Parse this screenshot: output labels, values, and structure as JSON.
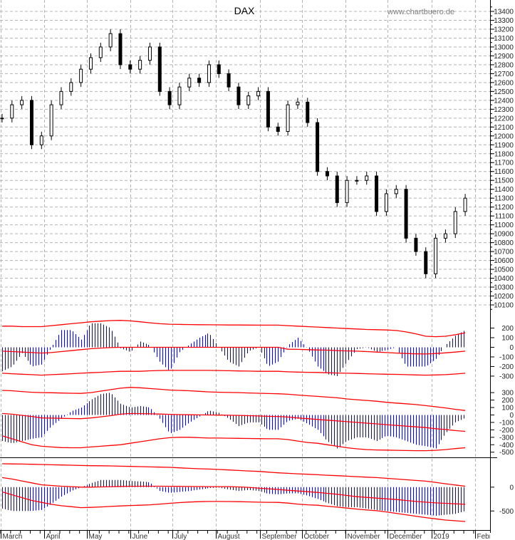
{
  "chart_data": [
    {
      "type": "ohlc",
      "title": "DAX",
      "watermark": "www.chartbuero.de",
      "x_start": "2018-03-02",
      "x_step_days": 7,
      "ylim": [
        10050,
        13480
      ],
      "yticks": [
        13400,
        13300,
        13200,
        13100,
        13000,
        12900,
        12800,
        12700,
        12600,
        12500,
        12400,
        12300,
        12200,
        12100,
        12000,
        11900,
        11800,
        11700,
        11600,
        11500,
        11400,
        11300,
        11200,
        11100,
        11000,
        10900,
        10800,
        10700,
        10600,
        10500,
        10400,
        10300,
        10200,
        10100
      ],
      "close": [
        12200,
        12350,
        12400,
        11900,
        12000,
        12350,
        12500,
        12600,
        12750,
        12880,
        13000,
        13150,
        12800,
        12750,
        12850,
        13000,
        12500,
        12350,
        12550,
        12650,
        12600,
        12800,
        12700,
        12550,
        12350,
        12450,
        12500,
        12100,
        12050,
        12350,
        12380,
        12150,
        11600,
        11550,
        11250,
        11500,
        11500,
        11550,
        11150,
        11350,
        11400,
        10850,
        10700,
        10450,
        10850,
        10900,
        11150,
        11300
      ],
      "grid": true
    },
    {
      "type": "bar+line",
      "ylim": [
        -330,
        300
      ],
      "yticks": [
        200,
        100,
        0,
        -100,
        -200,
        -300
      ],
      "histogram": [
        -250,
        -200,
        -60,
        -200,
        -180,
        0,
        180,
        180,
        80,
        250,
        250,
        200,
        -10,
        -50,
        60,
        20,
        -150,
        -250,
        -50,
        30,
        100,
        150,
        0,
        -150,
        -200,
        -40,
        0,
        -200,
        -150,
        20,
        100,
        -20,
        -200,
        -280,
        -300,
        -150,
        -20,
        0,
        -50,
        -30,
        0,
        -200,
        -200,
        -200,
        -120,
        20,
        120,
        180
      ],
      "upper_band": [
        220,
        220,
        215,
        215,
        215,
        225,
        235,
        245,
        255,
        265,
        272,
        278,
        280,
        275,
        265,
        255,
        245,
        240,
        238,
        236,
        235,
        234,
        233,
        232,
        232,
        231,
        230,
        230,
        230,
        225,
        220,
        215,
        210,
        205,
        200,
        195,
        190,
        185,
        183,
        180,
        175,
        160,
        140,
        115,
        110,
        115,
        130,
        150
      ],
      "middle_line": [
        -40,
        -45,
        -50,
        -55,
        -60,
        -55,
        -45,
        -35,
        -25,
        -15,
        -8,
        -3,
        0,
        0,
        0,
        0,
        0,
        0,
        0,
        0,
        0,
        0,
        0,
        0,
        0,
        0,
        0,
        0,
        0,
        -20,
        -22,
        -25,
        -28,
        -30,
        -35,
        -38,
        -40,
        -45,
        -50,
        -55,
        -60,
        -65,
        -68,
        -70,
        -65,
        -58,
        -50,
        -40
      ],
      "lower_band": [
        -270,
        -275,
        -280,
        -285,
        -290,
        -285,
        -280,
        -275,
        -270,
        -265,
        -260,
        -255,
        -250,
        -250,
        -250,
        -245,
        -242,
        -240,
        -240,
        -240,
        -240,
        -240,
        -242,
        -244,
        -246,
        -248,
        -250,
        -250,
        -250,
        -255,
        -258,
        -260,
        -262,
        -265,
        -268,
        -270,
        -272,
        -275,
        -278,
        -280,
        -282,
        -285,
        -288,
        -290,
        -288,
        -285,
        -278,
        -270
      ]
    },
    {
      "type": "bar+line",
      "ylim": [
        -560,
        330
      ],
      "yticks": [
        300,
        200,
        100,
        0,
        -100,
        -200,
        -300,
        -400,
        -500
      ],
      "histogram": [
        -350,
        -380,
        -350,
        -320,
        -300,
        -150,
        -50,
        50,
        100,
        200,
        280,
        300,
        150,
        100,
        120,
        100,
        -50,
        -250,
        -200,
        -100,
        -20,
        60,
        30,
        -50,
        -150,
        -100,
        -100,
        -200,
        -200,
        -80,
        -50,
        -120,
        -200,
        -350,
        -450,
        -350,
        -300,
        -300,
        -350,
        -280,
        -300,
        -350,
        -400,
        -420,
        -450,
        -250,
        -100,
        -40
      ],
      "upper_band": [
        330,
        325,
        315,
        305,
        300,
        298,
        295,
        292,
        290,
        300,
        320,
        340,
        360,
        370,
        365,
        355,
        345,
        335,
        330,
        325,
        318,
        310,
        305,
        302,
        300,
        296,
        292,
        288,
        285,
        278,
        268,
        258,
        250,
        240,
        230,
        215,
        205,
        195,
        185,
        170,
        160,
        150,
        140,
        125,
        110,
        95,
        75,
        60
      ],
      "middle_line": [
        20,
        10,
        -5,
        -20,
        -40,
        -42,
        -45,
        -48,
        -50,
        -40,
        -25,
        -10,
        10,
        20,
        18,
        15,
        12,
        8,
        5,
        3,
        1,
        0,
        -2,
        -4,
        -6,
        -10,
        -14,
        -18,
        -20,
        -28,
        -40,
        -50,
        -60,
        -70,
        -80,
        -90,
        -100,
        -110,
        -120,
        -130,
        -140,
        -150,
        -160,
        -170,
        -185,
        -195,
        -210,
        -220
      ],
      "lower_band": [
        -280,
        -320,
        -360,
        -400,
        -420,
        -430,
        -438,
        -440,
        -440,
        -430,
        -420,
        -410,
        -400,
        -380,
        -360,
        -340,
        -320,
        -305,
        -300,
        -300,
        -305,
        -310,
        -310,
        -312,
        -314,
        -316,
        -318,
        -320,
        -320,
        -330,
        -350,
        -370,
        -380,
        -400,
        -420,
        -440,
        -455,
        -465,
        -470,
        -472,
        -475,
        -478,
        -480,
        -480,
        -475,
        -465,
        -452,
        -440
      ]
    },
    {
      "type": "bar+line",
      "ylim": [
        -840,
        580
      ],
      "yticks": [
        0,
        -500
      ],
      "histogram": [
        -450,
        -500,
        -500,
        -500,
        -480,
        -350,
        -200,
        -80,
        0,
        80,
        150,
        150,
        150,
        130,
        120,
        100,
        -80,
        -120,
        -100,
        -80,
        -50,
        -20,
        -10,
        -50,
        -80,
        -60,
        -80,
        -140,
        -150,
        -130,
        -130,
        -180,
        -250,
        -330,
        -400,
        -420,
        -420,
        -450,
        -480,
        -500,
        -520,
        -540,
        -560,
        -580,
        -600,
        -580,
        -560,
        -500
      ],
      "upper_band": [
        490,
        488,
        485,
        480,
        475,
        470,
        465,
        460,
        455,
        450,
        448,
        445,
        440,
        435,
        430,
        425,
        420,
        415,
        405,
        395,
        385,
        380,
        370,
        360,
        350,
        340,
        330,
        315,
        300,
        290,
        280,
        270,
        260,
        250,
        240,
        230,
        220,
        210,
        200,
        185,
        170,
        155,
        140,
        125,
        100,
        70,
        45,
        20
      ],
      "middle_line": [
        200,
        170,
        130,
        90,
        50,
        35,
        20,
        10,
        0,
        0,
        5,
        10,
        15,
        18,
        20,
        20,
        20,
        18,
        16,
        14,
        12,
        10,
        10,
        10,
        5,
        -5,
        -20,
        -35,
        -50,
        -65,
        -80,
        -95,
        -110,
        -130,
        -150,
        -175,
        -200,
        -215,
        -230,
        -245,
        -260,
        -280,
        -300,
        -315,
        -330,
        -340,
        -350,
        -360
      ],
      "lower_band": [
        -100,
        -160,
        -220,
        -280,
        -320,
        -360,
        -390,
        -410,
        -430,
        -425,
        -415,
        -405,
        -395,
        -385,
        -380,
        -370,
        -355,
        -340,
        -325,
        -312,
        -305,
        -300,
        -300,
        -302,
        -305,
        -310,
        -315,
        -318,
        -320,
        -335,
        -355,
        -370,
        -380,
        -400,
        -420,
        -440,
        -460,
        -480,
        -495,
        -520,
        -550,
        -580,
        -610,
        -640,
        -665,
        -690,
        -705,
        -720
      ]
    }
  ],
  "x_axis": {
    "range": [
      "2018-03-01",
      "2019-02-05"
    ],
    "months": [
      {
        "date": "2018-03-01",
        "label": "March"
      },
      {
        "date": "2018-04-01",
        "label": "April"
      },
      {
        "date": "2018-05-01",
        "label": "May"
      },
      {
        "date": "2018-06-01",
        "label": "June"
      },
      {
        "date": "2018-07-01",
        "label": "July"
      },
      {
        "date": "2018-08-01",
        "label": "August"
      },
      {
        "date": "2018-09-01",
        "label": "September"
      },
      {
        "date": "2018-10-01",
        "label": "October"
      },
      {
        "date": "2018-11-01",
        "label": "November"
      },
      {
        "date": "2018-12-01",
        "label": "December"
      },
      {
        "date": "2019-01-01",
        "label": "2019"
      },
      {
        "date": "2019-02-01",
        "label": "February"
      }
    ]
  },
  "colors": {
    "histogram": "#0000ff",
    "bands": "#ff0000",
    "price_bars": "#000000",
    "grid": "#b4b4b4",
    "watermark": "#808080"
  }
}
